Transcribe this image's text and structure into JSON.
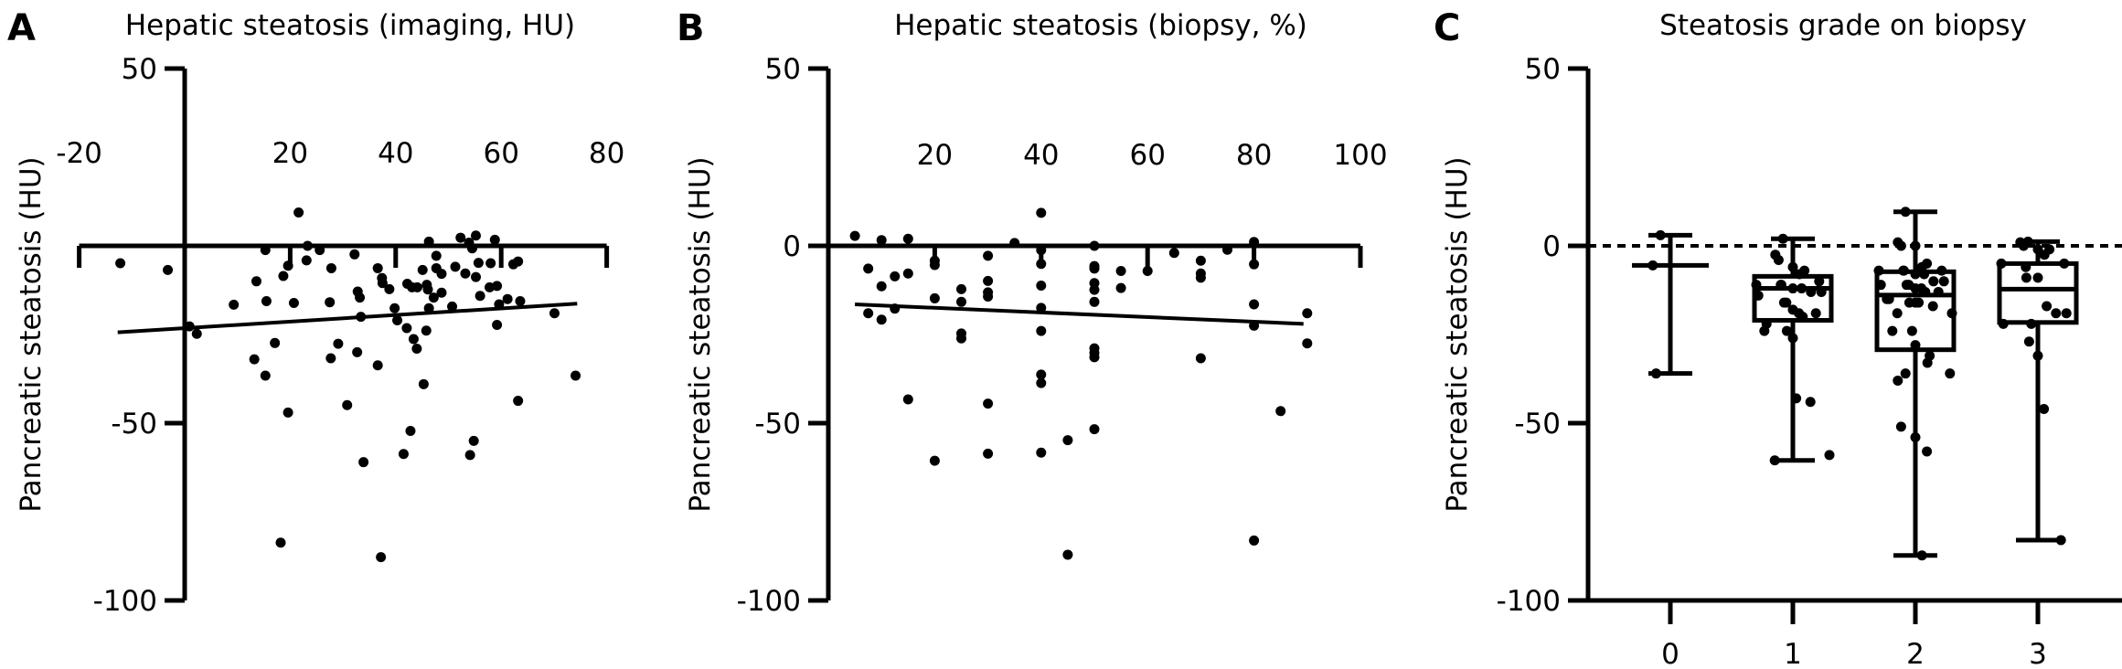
{
  "chart_data": [
    {
      "panel": "A",
      "type": "scatter",
      "title": "Hepatic steatosis (imaging, HU)",
      "xlabel": "Hepatic steatosis (imaging, HU)",
      "ylabel": "Pancreatic steatosis (HU)",
      "xlim": [
        -20,
        80
      ],
      "ylim": [
        -100,
        50
      ],
      "xticks": [
        -20,
        20,
        40,
        60,
        80
      ],
      "yticks": [
        50,
        -50,
        -100
      ],
      "grid": false,
      "points": [
        [
          -12.2,
          -4.9
        ],
        [
          -3.2,
          -6.8
        ],
        [
          0.9,
          -22.7
        ],
        [
          2.3,
          -24.8
        ],
        [
          9.3,
          -16.6
        ],
        [
          13.6,
          -10
        ],
        [
          15.3,
          -1.2
        ],
        [
          15.5,
          -15.6
        ],
        [
          13.2,
          -32
        ],
        [
          15.3,
          -36.6
        ],
        [
          17.1,
          -27.4
        ],
        [
          18.2,
          -83.7
        ],
        [
          19.6,
          -47
        ],
        [
          18.7,
          -8.5
        ],
        [
          19.6,
          -5.6
        ],
        [
          20.7,
          -16.1
        ],
        [
          21.6,
          9.4
        ],
        [
          23.3,
          0
        ],
        [
          23.1,
          -4.1
        ],
        [
          25.6,
          -1.2
        ],
        [
          27.8,
          -6.3
        ],
        [
          27.5,
          -15.9
        ],
        [
          27.7,
          -31.7
        ],
        [
          29.1,
          -27.6
        ],
        [
          30.8,
          -44.9
        ],
        [
          32.2,
          -2.4
        ],
        [
          32.8,
          -12.9
        ],
        [
          33.2,
          -14.6
        ],
        [
          33.4,
          -20
        ],
        [
          32.7,
          -30
        ],
        [
          33.9,
          -61
        ],
        [
          36.6,
          -6.3
        ],
        [
          37.4,
          -9.1
        ],
        [
          37.5,
          -10.5
        ],
        [
          38.8,
          -12.2
        ],
        [
          36.6,
          -33.7
        ],
        [
          37.2,
          -87.8
        ],
        [
          39.8,
          -17.6
        ],
        [
          40.3,
          -21
        ],
        [
          42.1,
          -23.2
        ],
        [
          43.4,
          -26.3
        ],
        [
          44,
          -29
        ],
        [
          42.2,
          -10.7
        ],
        [
          43.1,
          -11.7
        ],
        [
          44.1,
          -11.7
        ],
        [
          41.5,
          -58.7
        ],
        [
          42.8,
          -52.2
        ],
        [
          45.3,
          -39
        ],
        [
          45.1,
          -6.8
        ],
        [
          45.9,
          -11
        ],
        [
          46.1,
          -12.3
        ],
        [
          46.3,
          -17.6
        ],
        [
          45.8,
          -23.9
        ],
        [
          46.3,
          1.2
        ],
        [
          47.2,
          -14.6
        ],
        [
          47.7,
          -2.8
        ],
        [
          47.7,
          -6.3
        ],
        [
          48.7,
          -7.9
        ],
        [
          48.7,
          -13.2
        ],
        [
          50.7,
          -17.1
        ],
        [
          51.3,
          -5.9
        ],
        [
          52.3,
          2.3
        ],
        [
          53.2,
          -7.8
        ],
        [
          53.9,
          0.9
        ],
        [
          54.5,
          -0.7
        ],
        [
          55.2,
          2.9
        ],
        [
          55.2,
          -8.8
        ],
        [
          56,
          -14.1
        ],
        [
          55.7,
          -4.8
        ],
        [
          54.1,
          -59
        ],
        [
          54.8,
          -55
        ],
        [
          57.8,
          -11.7
        ],
        [
          58,
          -4.9
        ],
        [
          58.8,
          1.7
        ],
        [
          59.2,
          -11.3
        ],
        [
          59.2,
          -22.3
        ],
        [
          59.6,
          -16.5
        ],
        [
          61.2,
          -15
        ],
        [
          62.3,
          -5.2
        ],
        [
          63.2,
          -4.4
        ],
        [
          63.6,
          -15.6
        ],
        [
          63.2,
          -43.7
        ],
        [
          70.1,
          -19
        ],
        [
          74.1,
          -36.6
        ]
      ],
      "fit_line": [
        [
          -12.7,
          -24.4
        ],
        [
          74.4,
          -16.3
        ]
      ]
    },
    {
      "panel": "B",
      "type": "scatter",
      "title": "Hepatic steatosis (biopsy, %)",
      "xlabel": "Hepatic steatosis (biopsy, %)",
      "ylabel": "Pancreatic steatosis (HU)",
      "xlim": [
        0,
        100
      ],
      "ylim": [
        -100,
        50
      ],
      "xticks": [
        20,
        40,
        60,
        80,
        100
      ],
      "yticks": [
        50,
        0,
        -50,
        -100
      ],
      "grid": false,
      "points": [
        [
          5,
          2.8
        ],
        [
          7.5,
          -6.4
        ],
        [
          7.5,
          -19
        ],
        [
          10,
          1.6
        ],
        [
          10,
          -11.4
        ],
        [
          10,
          -20.8
        ],
        [
          12.5,
          -8.6
        ],
        [
          12.5,
          -17.7
        ],
        [
          15,
          2
        ],
        [
          15,
          -7.8
        ],
        [
          15,
          -43.3
        ],
        [
          20,
          -4.2
        ],
        [
          20,
          -5.4
        ],
        [
          20,
          -14.8
        ],
        [
          20,
          -60.6
        ],
        [
          25,
          -12.2
        ],
        [
          25,
          -15.8
        ],
        [
          25,
          -24.7
        ],
        [
          25,
          -26.1
        ],
        [
          30,
          -2.8
        ],
        [
          30,
          -9.9
        ],
        [
          30,
          -13.1
        ],
        [
          30,
          -14.3
        ],
        [
          30,
          -44.5
        ],
        [
          30,
          -58.6
        ],
        [
          35,
          0.8
        ],
        [
          40,
          9.3
        ],
        [
          40,
          -1.2
        ],
        [
          40,
          -5.1
        ],
        [
          40,
          -11.2
        ],
        [
          40,
          -17.5
        ],
        [
          40,
          -24
        ],
        [
          40,
          -36.3
        ],
        [
          40,
          -38.7
        ],
        [
          40,
          -58.3
        ],
        [
          45,
          -54.8
        ],
        [
          45,
          -87.1
        ],
        [
          50,
          0
        ],
        [
          50,
          -5.7
        ],
        [
          50,
          -6.4
        ],
        [
          50,
          -10.5
        ],
        [
          50,
          -12.4
        ],
        [
          50,
          -15.8
        ],
        [
          50,
          -28.9
        ],
        [
          50,
          -30.2
        ],
        [
          50,
          -31.4
        ],
        [
          50,
          -51.7
        ],
        [
          55,
          -7.1
        ],
        [
          55,
          -11.9
        ],
        [
          60,
          -7.1
        ],
        [
          65,
          -2
        ],
        [
          70,
          -4.2
        ],
        [
          70,
          -7.8
        ],
        [
          70,
          -9
        ],
        [
          70,
          -31.7
        ],
        [
          75,
          -1.1
        ],
        [
          80,
          1.1
        ],
        [
          80,
          -5.2
        ],
        [
          80,
          -16.5
        ],
        [
          80,
          -22.5
        ],
        [
          80,
          -83.1
        ],
        [
          85,
          -46.6
        ],
        [
          90,
          -19
        ],
        [
          90,
          -27.5
        ]
      ],
      "fit_line": [
        [
          5,
          -16.5
        ],
        [
          89.3,
          -22.0
        ]
      ]
    },
    {
      "panel": "C",
      "type": "box",
      "title": "Steatosis grade on biopsy",
      "ylabel": "Pancreatic steatosis (HU)",
      "ylim": [
        -100,
        50
      ],
      "yticks": [
        50,
        0,
        -50,
        -100
      ],
      "reference_line": 0,
      "grid": false,
      "categories": [
        "0",
        "1",
        "2",
        "3"
      ],
      "boxes": [
        {
          "min": -36,
          "q1": -5.5,
          "median": -5.5,
          "q3": -5.5,
          "max": 3,
          "points": [
            3,
            -5.5,
            -36
          ]
        },
        {
          "min": -60.5,
          "q1": -21,
          "median": -12,
          "q3": -8.6,
          "max": 2,
          "points": [
            2,
            -2.5,
            -4,
            -6,
            -7,
            -8,
            -10,
            -11,
            -11,
            -11,
            -12,
            -12,
            -13,
            -13,
            -14,
            -16,
            -16,
            -18,
            -19,
            -19,
            -20,
            -22,
            -24,
            -24,
            -26,
            -43,
            -44,
            -59,
            -60.5
          ]
        },
        {
          "min": -87.3,
          "q1": -29.3,
          "median": -13.9,
          "q3": -7.3,
          "max": 9.6,
          "points": [
            9.6,
            1,
            0,
            0,
            -5,
            -6,
            -7,
            -7,
            -7,
            -7,
            -8,
            -8,
            -10,
            -10,
            -11,
            -11,
            -11,
            -12,
            -12,
            -13,
            -13,
            -15,
            -15,
            -16,
            -16,
            -16,
            -17,
            -19,
            -19,
            -24,
            -24,
            -28,
            -31,
            -33,
            -36,
            -36,
            -38,
            -51,
            -54,
            -58,
            -87.3
          ]
        },
        {
          "min": -83,
          "q1": -21.6,
          "median": -12.2,
          "q3": -5,
          "max": 1.2,
          "points": [
            1.2,
            1,
            0,
            -1,
            -1,
            -2.5,
            -5,
            -5,
            -6,
            -9,
            -9,
            -17,
            -19,
            -19,
            -22,
            -22,
            -27,
            -31,
            -46,
            -83
          ]
        }
      ]
    }
  ]
}
